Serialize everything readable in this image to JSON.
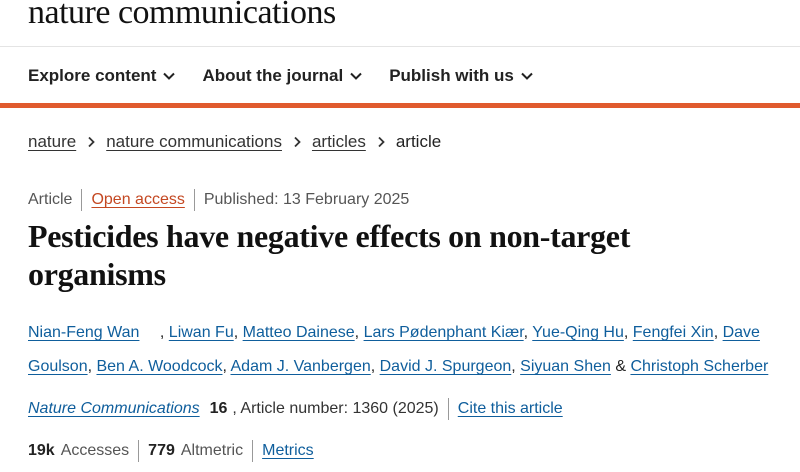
{
  "header": {
    "logo": "nature communications"
  },
  "nav": {
    "items": [
      {
        "label": "Explore content"
      },
      {
        "label": "About the journal"
      },
      {
        "label": "Publish with us"
      }
    ]
  },
  "breadcrumb": {
    "items": [
      "nature",
      "nature communications",
      "articles"
    ],
    "current": "article"
  },
  "meta": {
    "type": "Article",
    "access": "Open access",
    "published": "Published: 13 February 2025"
  },
  "article": {
    "title": "Pesticides have negative effects on non-target organisms"
  },
  "authors": [
    "Nian-Feng Wan",
    "Liwan Fu",
    "Matteo Dainese",
    "Lars Pødenphant Kiær",
    "Yue-Qing Hu",
    "Fengfei Xin",
    "Dave Goulson",
    "Ben A. Woodcock",
    "Adam J. Vanbergen",
    "David J. Spurgeon",
    "Siyuan Shen",
    "Christoph Scherber"
  ],
  "authors_last_sep": "&",
  "citation": {
    "journal": "Nature Communications",
    "volume": "16",
    "article_number": ", Article number: 1360 (2025)",
    "cite_link": "Cite this article"
  },
  "metrics": {
    "accesses_value": "19k",
    "accesses_label": "Accesses",
    "altmetric_value": "779",
    "altmetric_label": "Altmetric",
    "metrics_link": "Metrics"
  },
  "colors": {
    "accent": "#e05a2e",
    "link": "#0f5e9c",
    "open_access": "#c44822"
  }
}
